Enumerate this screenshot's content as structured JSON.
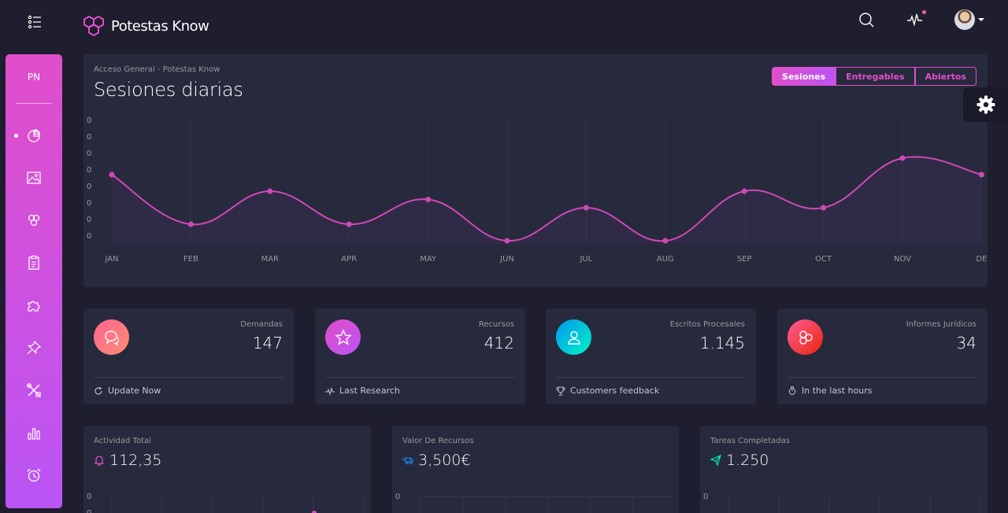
{
  "brand": {
    "name": "Potestas Know"
  },
  "sidebar": {
    "logo": "PN",
    "items": [
      {
        "icon": "chart-pie-icon",
        "active": true
      },
      {
        "icon": "image-icon"
      },
      {
        "icon": "atom-icon"
      },
      {
        "icon": "paper-icon"
      },
      {
        "icon": "puzzle-icon"
      },
      {
        "icon": "pin-icon"
      },
      {
        "icon": "settings-tools-icon"
      },
      {
        "icon": "chart-bar-icon"
      },
      {
        "icon": "alarm-icon"
      }
    ]
  },
  "main_chart": {
    "category": "Acceso General - Potestas Know",
    "title": "Sesiones diarias",
    "tabs": [
      "Sesiones",
      "Entregables",
      "Abiertos"
    ],
    "active_tab": "Sesiones"
  },
  "stats": [
    {
      "label": "Demandas",
      "value": "147",
      "footer": "Update Now",
      "icon": "chat-icon",
      "footer_icon": "refresh-icon",
      "color_from": "#ff6491",
      "color_to": "#ff8d72"
    },
    {
      "label": "Recursos",
      "value": "412",
      "footer": "Last Research",
      "icon": "star-icon",
      "footer_icon": "sound-wave-icon",
      "color_from": "#e14eca",
      "color_to": "#ba54f5"
    },
    {
      "label": "Escritos Procesales",
      "value": "1.145",
      "footer": "Customers feedback",
      "icon": "user-icon",
      "footer_icon": "trophy-icon",
      "color_from": "#0098f0",
      "color_to": "#00f2c3"
    },
    {
      "label": "Informes Jurídicos",
      "value": "34",
      "footer": "In the last hours",
      "icon": "molecule-icon",
      "footer_icon": "watch-icon",
      "color_from": "#fd5d93",
      "color_to": "#ec250d"
    }
  ],
  "bottom_cards": [
    {
      "category": "Actividad Total",
      "value": "112,35",
      "icon": "bell-icon",
      "icon_color": "#e14eca",
      "zero": "0"
    },
    {
      "category": "Valor De Recursos",
      "value": "3,500€",
      "icon": "delivery-icon",
      "icon_color": "#1d8cf8",
      "zero": "0"
    },
    {
      "category": "Tareas Completadas",
      "value": "1.250",
      "icon": "send-icon",
      "icon_color": "#00f2c3",
      "zero": "0"
    }
  ],
  "chart_data": {
    "type": "line",
    "categories": [
      "JAN",
      "FEB",
      "MAR",
      "APR",
      "MAY",
      "JUN",
      "JUL",
      "AUG",
      "SEP",
      "OCT",
      "NOV",
      "DE"
    ],
    "y_tick_labels": [
      "0",
      "0",
      "0",
      "0",
      "0",
      "0",
      "0",
      "0"
    ],
    "series": [
      {
        "values": [
          100,
          70,
          90,
          70,
          85,
          60,
          80,
          60,
          90,
          80,
          110,
          100
        ]
      }
    ],
    "color": "#d048b6",
    "grid": true
  }
}
